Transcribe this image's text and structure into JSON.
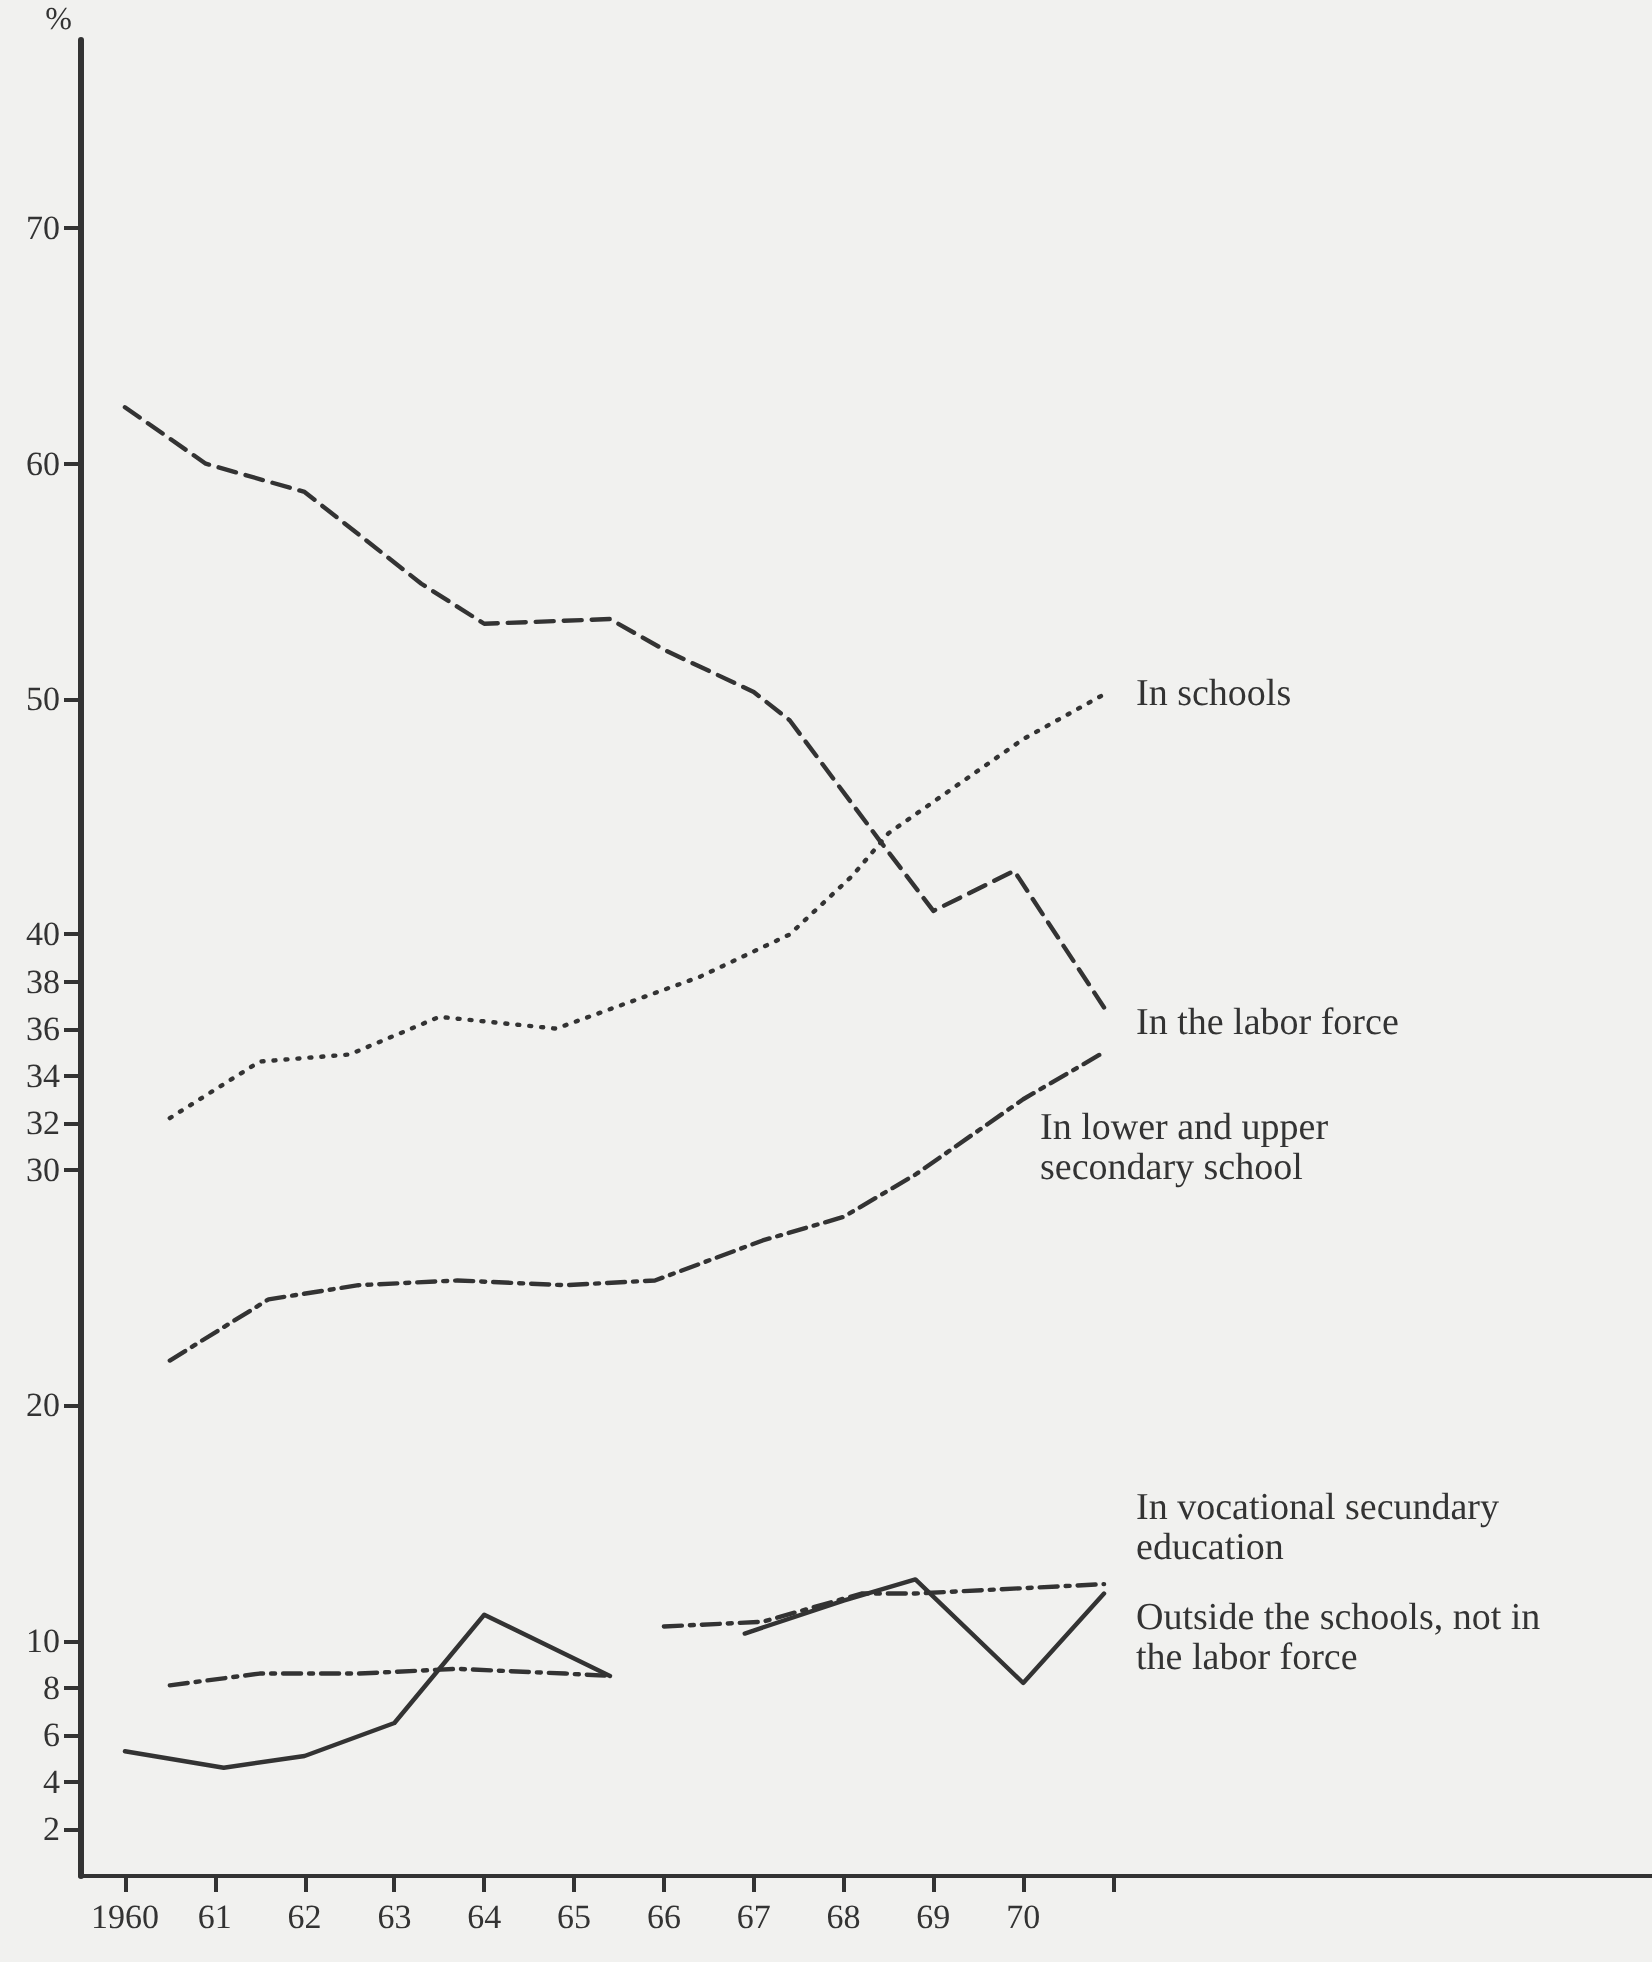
{
  "chart_data": {
    "type": "line",
    "ylabel": "%",
    "legend": false,
    "grid": false,
    "marker": "none",
    "xlim": [
      1959.5,
      1977
    ],
    "xticks": [
      {
        "value": 1960,
        "label": "1960"
      },
      {
        "value": 1961,
        "label": "61"
      },
      {
        "value": 1962,
        "label": "62"
      },
      {
        "value": 1963,
        "label": "63"
      },
      {
        "value": 1964,
        "label": "64"
      },
      {
        "value": 1965,
        "label": "65"
      },
      {
        "value": 1966,
        "label": "66"
      },
      {
        "value": 1967,
        "label": "67"
      },
      {
        "value": 1968,
        "label": "68"
      },
      {
        "value": 1969,
        "label": "69"
      },
      {
        "value": 1970,
        "label": "70"
      },
      {
        "value": 1971,
        "label": null
      }
    ],
    "ylim": [
      0,
      78
    ],
    "yticks": [
      2,
      4,
      6,
      8,
      10,
      20,
      30,
      32,
      34,
      36,
      38,
      40,
      50,
      60,
      70
    ],
    "series": [
      {
        "name": "In schools",
        "color": "#333333",
        "line_style": "dotted",
        "x": [
          1960.5,
          1961.5,
          1962.5,
          1963.5,
          1964.8,
          1966.4,
          1967.4,
          1968.1,
          1968.5,
          1970.0,
          1970.9
        ],
        "values": [
          32.2,
          34.6,
          34.9,
          36.5,
          36.0,
          38.2,
          40.0,
          42.5,
          44.3,
          48.3,
          50.2
        ]
      },
      {
        "name": "In the labor force",
        "color": "#333333",
        "line_style": "dashed",
        "x": [
          1960.0,
          1960.9,
          1962.0,
          1963.3,
          1964.0,
          1965.4,
          1966.0,
          1967.0,
          1967.4,
          1968.4,
          1969.0,
          1969.9,
          1970.9
        ],
        "values": [
          62.4,
          60.0,
          58.8,
          54.9,
          53.2,
          53.4,
          52.1,
          50.3,
          49.1,
          44.0,
          41.0,
          42.7,
          36.9
        ]
      },
      {
        "name": "In lower and upper secondary school",
        "color": "#333333",
        "line_style": "dashdot",
        "x": [
          1960.5,
          1961.6,
          1962.6,
          1963.7,
          1964.9,
          1965.9,
          1967.1,
          1968.0,
          1968.8,
          1970.0,
          1970.9
        ],
        "values": [
          21.9,
          24.5,
          25.1,
          25.3,
          25.1,
          25.3,
          27.0,
          28.0,
          29.8,
          33.0,
          35.0
        ]
      },
      {
        "name": "In vocational secundary education",
        "color": "#333333",
        "line_style": "dashdot",
        "x": [
          1960.5,
          1961.5,
          1962.6,
          1963.7,
          1964.9,
          1965.4,
          1965.7,
          1966.0,
          1967.1,
          1968.2,
          1968.8,
          1970.9
        ],
        "values": [
          8.1,
          8.6,
          8.6,
          8.8,
          8.6,
          8.5,
          null,
          10.6,
          10.8,
          12.0,
          12.0,
          12.4
        ]
      },
      {
        "name": "Outside the schools, not in the labor force",
        "color": "#333333",
        "line_style": "solid",
        "x": [
          1960.0,
          1961.1,
          1962.0,
          1963.0,
          1964.0,
          1965.4,
          1966.2,
          1966.9,
          1968.0,
          1968.8,
          1970.0,
          1970.9
        ],
        "values": [
          5.3,
          4.6,
          5.1,
          6.5,
          11.1,
          8.5,
          null,
          10.3,
          11.7,
          12.6,
          8.2,
          12.0
        ]
      }
    ]
  }
}
